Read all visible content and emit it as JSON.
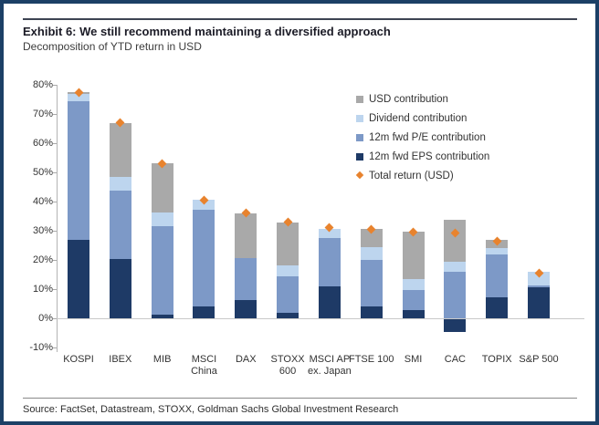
{
  "header": {
    "exhibit_title": "Exhibit 6: We still recommend maintaining a diversified approach",
    "subtitle": "Decomposition of YTD return in USD"
  },
  "footer": {
    "source": "Source: FactSet, Datastream, STOXX, Goldman Sachs Global Investment Research"
  },
  "colors": {
    "frame_border": "#1c4066",
    "usd_contribution": "#a9a9a9",
    "dividend_contribution": "#bdd5ee",
    "pe_contribution": "#7d99c7",
    "eps_contribution": "#1e3a66",
    "total_marker": "#e8832e",
    "axis_line": "#b4b4b4",
    "text": "#333333"
  },
  "chart_data": {
    "type": "bar",
    "stacked": true,
    "title": "Decomposition of YTD return in USD",
    "categories": [
      "KOSPI",
      "IBEX",
      "MIB",
      "MSCI\nChina",
      "DAX",
      "STOXX\n600",
      "MSCI AP\nex. Japan",
      "FTSE 100",
      "SMI",
      "CAC",
      "TOPIX",
      "S&P 500"
    ],
    "series": [
      {
        "name": "12m fwd EPS contribution",
        "color": "#1e3a66",
        "values": [
          27.0,
          20.3,
          1.3,
          4.0,
          6.3,
          1.9,
          11.0,
          4.0,
          2.8,
          -4.5,
          7.2,
          10.6
        ]
      },
      {
        "name": "12m fwd P/E contribution",
        "color": "#7d99c7",
        "values": [
          47.5,
          23.4,
          30.2,
          33.3,
          14.2,
          12.5,
          16.6,
          15.9,
          7.0,
          16.0,
          14.6,
          0.8
        ]
      },
      {
        "name": "Dividend contribution",
        "color": "#bdd5ee",
        "values": [
          2.5,
          4.6,
          4.7,
          3.2,
          0,
          3.8,
          3.1,
          4.6,
          3.6,
          3.4,
          2.4,
          4.4
        ]
      },
      {
        "name": "USD contribution",
        "color": "#a9a9a9",
        "values": [
          0.5,
          18.7,
          16.8,
          0,
          15.5,
          14.6,
          0,
          6.0,
          16.2,
          14.3,
          2.8,
          0
        ]
      }
    ],
    "markers": {
      "name": "Total return (USD)",
      "color": "#e8832e",
      "values": [
        77.5,
        67.0,
        53.0,
        40.5,
        36.0,
        33.0,
        31.0,
        30.5,
        29.6,
        29.2,
        26.5,
        15.5
      ]
    },
    "y_axis": {
      "min": -10,
      "max": 80,
      "step": 10,
      "unit": "%"
    },
    "legend_order": [
      "USD contribution",
      "Dividend contribution",
      "12m fwd P/E contribution",
      "12m fwd EPS contribution",
      "Total return (USD)"
    ],
    "legend_position": "upper right",
    "grid": false
  }
}
